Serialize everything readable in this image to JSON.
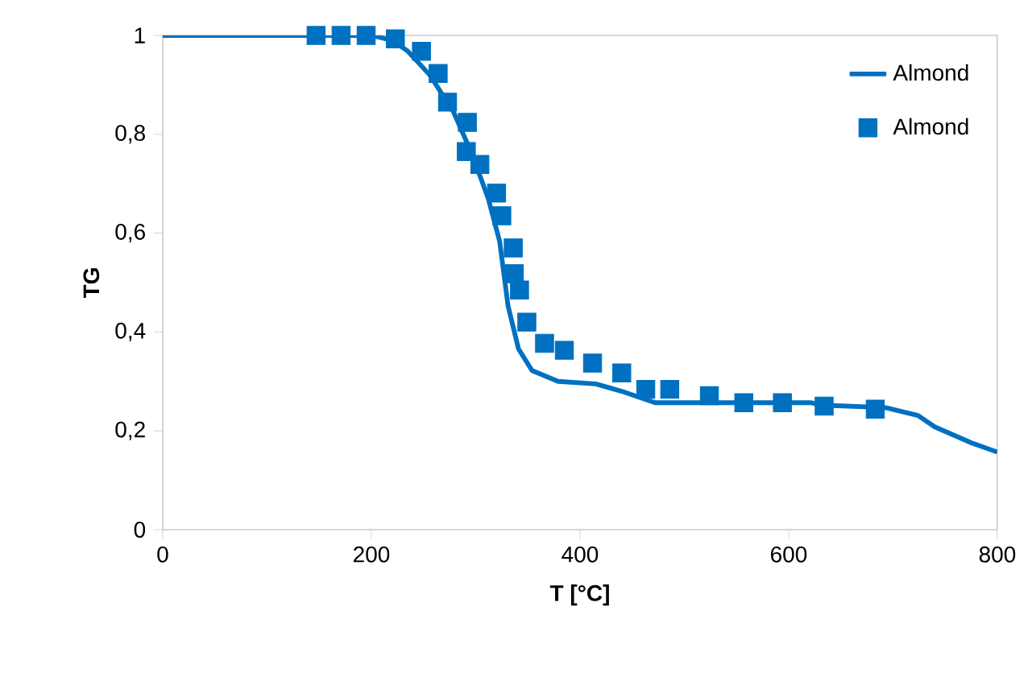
{
  "chart_data": {
    "type": "line",
    "xlabel": "T [°C]",
    "ylabel": "TG",
    "xlim": [
      0,
      800
    ],
    "ylim": [
      0,
      1
    ],
    "xticks": [
      0,
      200,
      400,
      600,
      800
    ],
    "yticks": [
      0,
      {
        "value": 0.2,
        "label": "0,2"
      },
      {
        "value": 0.4,
        "label": "0,4"
      },
      {
        "value": 0.6,
        "label": "0,6"
      },
      {
        "value": 0.8,
        "label": "0,8"
      },
      1
    ],
    "grid": false,
    "legend": "top right",
    "series": [
      {
        "name": "Almond",
        "type": "line",
        "marker": "none",
        "line_style": "solid",
        "color": "#0070c0",
        "x": [
          0,
          100,
          200,
          220,
          235,
          256,
          279,
          297,
          312,
          323,
          331,
          341,
          354,
          379,
          415,
          440,
          472,
          520,
          580,
          621,
          632,
          693,
          724,
          740,
          775,
          800
        ],
        "values": [
          1,
          1,
          1,
          0.99,
          0.968,
          0.92,
          0.844,
          0.757,
          0.67,
          0.583,
          0.453,
          0.366,
          0.322,
          0.3,
          0.295,
          0.28,
          0.257,
          0.257,
          0.257,
          0.257,
          0.252,
          0.247,
          0.231,
          0.208,
          0.176,
          0.157
        ]
      },
      {
        "name": "Almond",
        "type": "scatter",
        "marker": "square",
        "color": "#0070c0",
        "x": [
          147,
          171,
          195,
          223,
          248,
          264,
          273,
          292,
          291,
          304,
          320,
          325,
          336,
          337,
          342,
          349,
          366,
          385,
          412,
          440,
          463,
          486,
          524,
          557,
          594,
          634,
          683
        ],
        "values": [
          1,
          1,
          1,
          0.993,
          0.968,
          0.923,
          0.865,
          0.824,
          0.765,
          0.739,
          0.681,
          0.635,
          0.57,
          0.518,
          0.485,
          0.42,
          0.377,
          0.363,
          0.337,
          0.317,
          0.284,
          0.284,
          0.271,
          0.257,
          0.257,
          0.25,
          0.244
        ]
      }
    ]
  }
}
